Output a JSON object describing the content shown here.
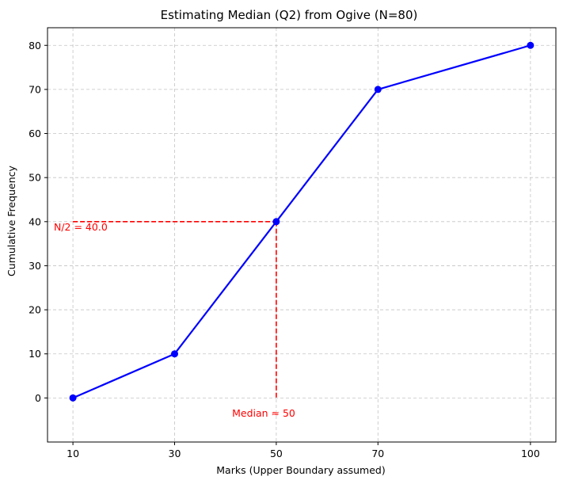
{
  "chart_data": {
    "type": "line",
    "title": "Estimating Median (Q2) from Ogive (N=80)",
    "xlabel": "Marks (Upper Boundary assumed)",
    "ylabel": "Cumulative Frequency",
    "x": [
      10,
      30,
      50,
      70,
      100
    ],
    "y": [
      0,
      10,
      40,
      70,
      80
    ],
    "xlim": [
      5,
      105
    ],
    "ylim": [
      -10,
      84
    ],
    "xticks": [
      10,
      30,
      50,
      70,
      100
    ],
    "yticks": [
      0,
      10,
      20,
      30,
      40,
      50,
      60,
      70,
      80
    ],
    "grid": true,
    "line_color": "#0000ff",
    "median_guide": {
      "x": 50,
      "y": 40,
      "color": "#ff0000",
      "h_label": "N/2 = 40.0",
      "v_label": "Median ≈ 50"
    }
  }
}
